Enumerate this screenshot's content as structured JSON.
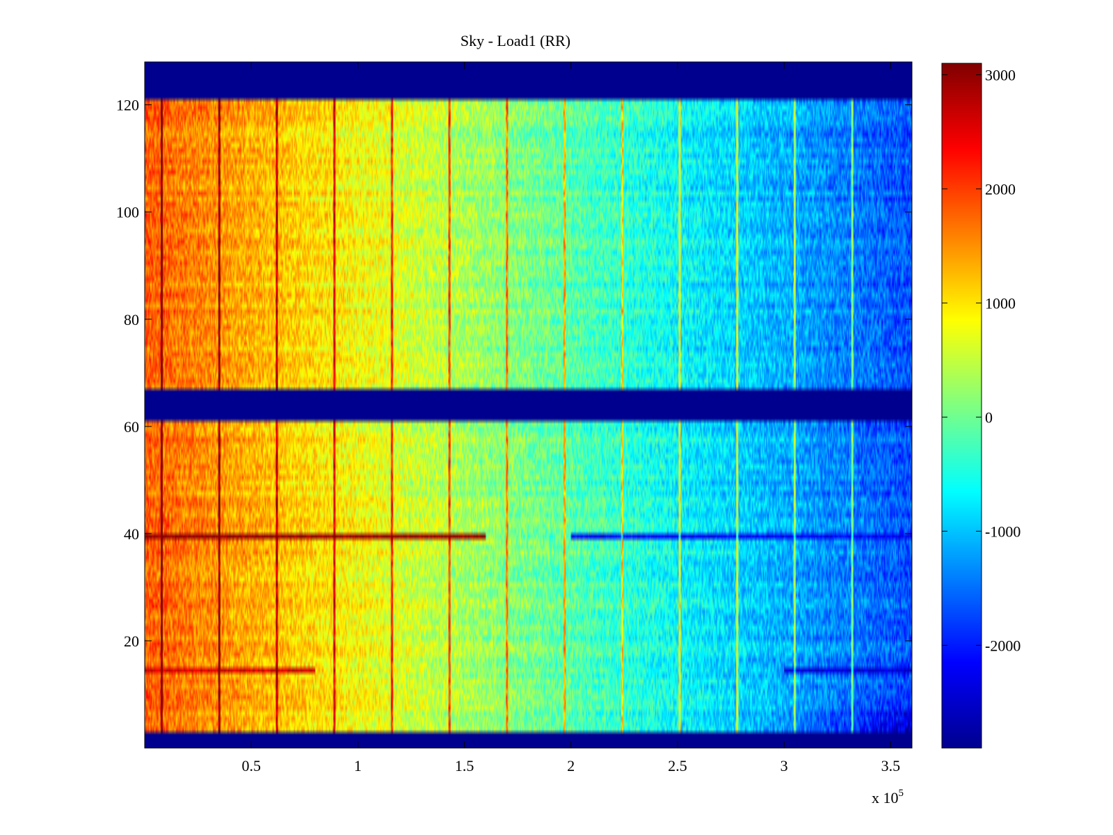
{
  "chart_data": {
    "type": "heatmap",
    "title": "Sky - Load1 (RR)",
    "xlabel": "",
    "ylabel": "",
    "x_exponent_label": "x 10",
    "x_exponent_power": "5",
    "xlim": [
      0,
      3.6
    ],
    "ylim": [
      0,
      128
    ],
    "x_ticks": [
      0.5,
      1,
      1.5,
      2,
      2.5,
      3,
      3.5
    ],
    "x_tick_labels": [
      "0.5",
      "1",
      "1.5",
      "2",
      "2.5",
      "3",
      "3.5"
    ],
    "y_ticks": [
      20,
      40,
      60,
      80,
      100,
      120
    ],
    "y_tick_labels": [
      "20",
      "40",
      "60",
      "80",
      "100",
      "120"
    ],
    "colorbar": {
      "range": [
        -2900,
        3100
      ],
      "ticks": [
        -2000,
        -1000,
        0,
        1000,
        2000,
        3000
      ],
      "tick_labels": [
        "-2000",
        "-1000",
        "0",
        "1000",
        "2000",
        "3000"
      ],
      "colormap": "jet"
    },
    "masked_rows": [
      [
        0,
        3
      ],
      [
        61,
        67
      ],
      [
        121,
        128
      ]
    ],
    "trend": {
      "value_at_x_start": 1800,
      "value_at_x_end": -1700
    },
    "spectral_lines_x": [
      0.08,
      0.35,
      0.62,
      0.89,
      1.16,
      1.43,
      1.7,
      1.97,
      2.24,
      2.51,
      2.78,
      3.05,
      3.32
    ],
    "anomalous_rows": [
      {
        "row": 39,
        "x_from": 0,
        "x_to": 1.6,
        "value": 3000
      },
      {
        "row": 39,
        "x_from": 2.0,
        "x_to": 3.6,
        "value": -2200
      },
      {
        "row": 14,
        "x_from": 0,
        "x_to": 0.8,
        "value": 2600
      },
      {
        "row": 14,
        "x_from": 3.0,
        "x_to": 3.6,
        "value": -2400
      }
    ],
    "mask_color": "#00008f"
  }
}
